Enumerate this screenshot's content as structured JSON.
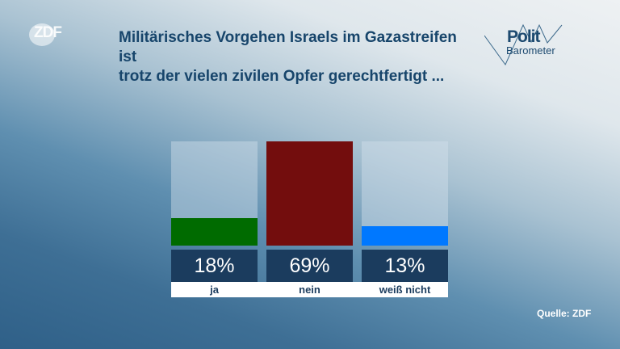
{
  "logo": "ZDF",
  "title_line1": "Militärisches Vorgehen Israels im Gazastreifen ist",
  "title_line2": "trotz der vielen zivilen Opfer gerechtfertigt ...",
  "brand": {
    "polit": "Polit",
    "barometer": "Barometer"
  },
  "source": "Quelle: ZDF",
  "chart_data": {
    "type": "bar",
    "title": "Militärisches Vorgehen Israels im Gazastreifen ist trotz der vielen zivilen Opfer gerechtfertigt ...",
    "categories": [
      "ja",
      "nein",
      "weiß nicht"
    ],
    "values": [
      18,
      69,
      13
    ],
    "labels": [
      "18%",
      "69%",
      "13%"
    ],
    "colors": [
      "#006b00",
      "#730d0d",
      "#0078ff"
    ],
    "unit": "%"
  }
}
